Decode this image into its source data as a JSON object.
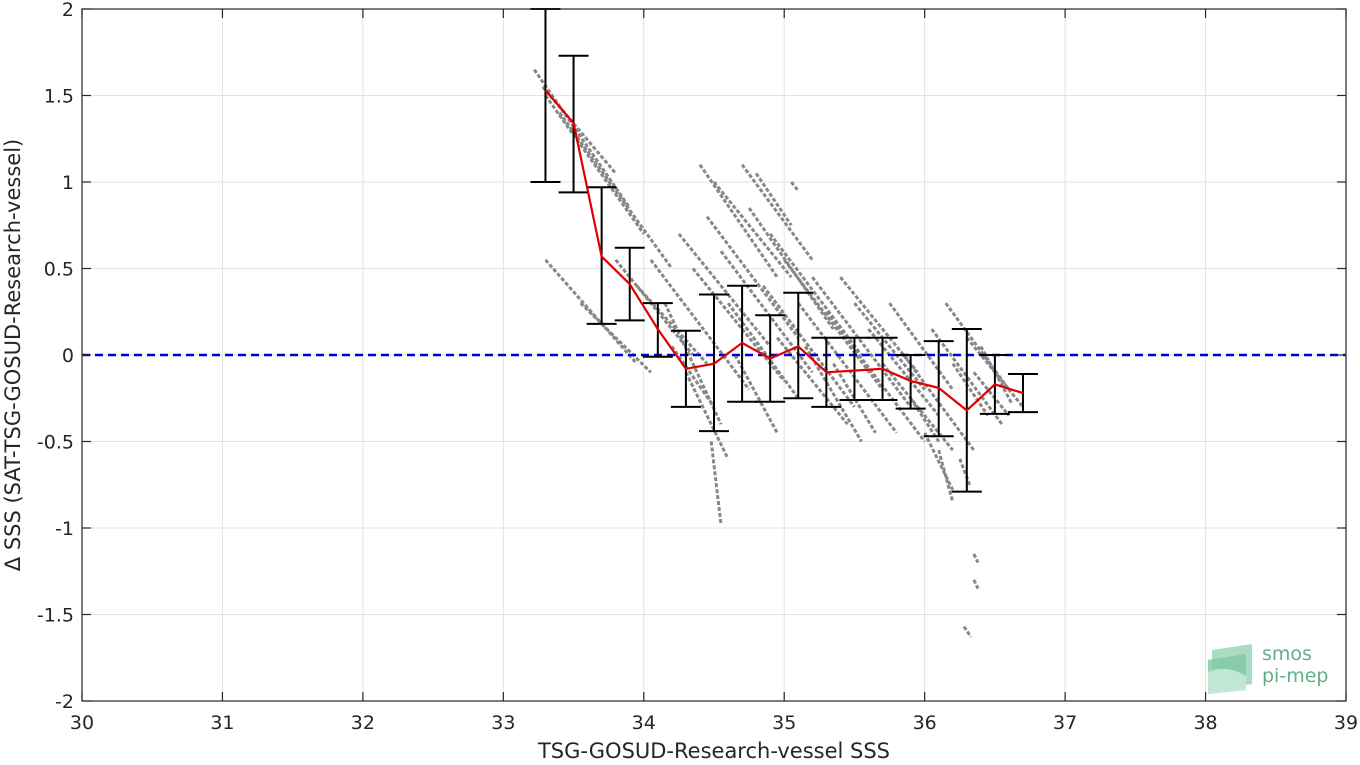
{
  "chart_data": {
    "type": "scatter",
    "xlabel": "TSG-GOSUD-Research-vessel SSS",
    "ylabel": "Δ SSS (SAT-TSG-GOSUD-Research-vessel)",
    "xlim": [
      30,
      39
    ],
    "ylim": [
      -2,
      2
    ],
    "xticks": [
      "30",
      "31",
      "32",
      "33",
      "34",
      "35",
      "36",
      "37",
      "38",
      "39"
    ],
    "yticks": [
      "2",
      "1.5",
      "1",
      "0.5",
      "0",
      "-0.5",
      "-1",
      "-1.5",
      "-2"
    ],
    "grid": true,
    "reference_line": {
      "y": 0,
      "color": "#0000cc",
      "style": "dashed"
    },
    "scatter_color": "#888888",
    "mean_color": "#e00000",
    "errorbar_color": "#000000",
    "binned_mean": [
      {
        "x": 33.3,
        "y": 1.53,
        "lower": 1.0,
        "upper": 2.0
      },
      {
        "x": 33.5,
        "y": 1.34,
        "lower": 0.94,
        "upper": 1.73
      },
      {
        "x": 33.7,
        "y": 0.57,
        "lower": 0.18,
        "upper": 0.97
      },
      {
        "x": 33.9,
        "y": 0.41,
        "lower": 0.2,
        "upper": 0.62
      },
      {
        "x": 34.1,
        "y": 0.15,
        "lower": -0.01,
        "upper": 0.3
      },
      {
        "x": 34.3,
        "y": -0.08,
        "lower": -0.3,
        "upper": 0.14
      },
      {
        "x": 34.5,
        "y": -0.05,
        "lower": -0.44,
        "upper": 0.35
      },
      {
        "x": 34.7,
        "y": 0.07,
        "lower": -0.27,
        "upper": 0.4
      },
      {
        "x": 34.9,
        "y": -0.02,
        "lower": -0.27,
        "upper": 0.23
      },
      {
        "x": 35.1,
        "y": 0.05,
        "lower": -0.25,
        "upper": 0.36
      },
      {
        "x": 35.3,
        "y": -0.1,
        "lower": -0.3,
        "upper": 0.1
      },
      {
        "x": 35.5,
        "y": -0.09,
        "lower": -0.26,
        "upper": 0.1
      },
      {
        "x": 35.7,
        "y": -0.08,
        "lower": -0.26,
        "upper": 0.1
      },
      {
        "x": 35.9,
        "y": -0.15,
        "lower": -0.31,
        "upper": 0.0
      },
      {
        "x": 36.1,
        "y": -0.19,
        "lower": -0.47,
        "upper": 0.08
      },
      {
        "x": 36.3,
        "y": -0.32,
        "lower": -0.79,
        "upper": 0.15
      },
      {
        "x": 36.5,
        "y": -0.17,
        "lower": -0.34,
        "upper": 0.0
      },
      {
        "x": 36.7,
        "y": -0.22,
        "lower": -0.33,
        "upper": -0.11
      }
    ],
    "scatter_streaks": [
      {
        "x1": 33.22,
        "y1": 1.65,
        "x2": 33.9,
        "y2": 0.85
      },
      {
        "x1": 33.28,
        "y1": 1.55,
        "x2": 33.8,
        "y2": 1.05
      },
      {
        "x1": 33.3,
        "y1": 1.5,
        "x2": 34.0,
        "y2": 0.7
      },
      {
        "x1": 33.4,
        "y1": 1.4,
        "x2": 34.2,
        "y2": 0.5
      },
      {
        "x1": 33.3,
        "y1": 0.55,
        "x2": 33.95,
        "y2": -0.05
      },
      {
        "x1": 33.55,
        "y1": 0.3,
        "x2": 34.05,
        "y2": -0.1
      },
      {
        "x1": 33.8,
        "y1": 0.55,
        "x2": 34.35,
        "y2": 0.0
      },
      {
        "x1": 33.95,
        "y1": 0.4,
        "x2": 34.45,
        "y2": -0.05
      },
      {
        "x1": 34.05,
        "y1": 0.55,
        "x2": 34.75,
        "y2": -0.2
      },
      {
        "x1": 34.15,
        "y1": 0.3,
        "x2": 34.55,
        "y2": -0.4
      },
      {
        "x1": 34.2,
        "y1": 0.05,
        "x2": 34.5,
        "y2": -0.3
      },
      {
        "x1": 34.25,
        "y1": 0.7,
        "x2": 34.9,
        "y2": 0.05
      },
      {
        "x1": 34.3,
        "y1": -0.1,
        "x2": 34.6,
        "y2": -0.6
      },
      {
        "x1": 34.35,
        "y1": 0.5,
        "x2": 35.0,
        "y2": -0.15
      },
      {
        "x1": 34.4,
        "y1": 1.1,
        "x2": 34.95,
        "y2": 0.45
      },
      {
        "x1": 34.45,
        "y1": 0.8,
        "x2": 35.1,
        "y2": 0.1
      },
      {
        "x1": 34.48,
        "y1": -0.5,
        "x2": 34.55,
        "y2": -0.98
      },
      {
        "x1": 34.5,
        "y1": 1.0,
        "x2": 35.05,
        "y2": 0.45
      },
      {
        "x1": 34.55,
        "y1": 0.6,
        "x2": 35.2,
        "y2": -0.1
      },
      {
        "x1": 34.6,
        "y1": 0.3,
        "x2": 35.1,
        "y2": -0.25
      },
      {
        "x1": 34.65,
        "y1": 0.0,
        "x2": 34.95,
        "y2": -0.45
      },
      {
        "x1": 34.7,
        "y1": 1.1,
        "x2": 35.2,
        "y2": 0.55
      },
      {
        "x1": 34.75,
        "y1": 0.85,
        "x2": 35.35,
        "y2": 0.15
      },
      {
        "x1": 34.8,
        "y1": 1.05,
        "x2": 35.05,
        "y2": 0.75
      },
      {
        "x1": 34.85,
        "y1": 0.4,
        "x2": 35.5,
        "y2": -0.3
      },
      {
        "x1": 34.9,
        "y1": 0.7,
        "x2": 35.55,
        "y2": 0.0
      },
      {
        "x1": 34.95,
        "y1": 0.1,
        "x2": 35.45,
        "y2": -0.4
      },
      {
        "x1": 35.0,
        "y1": 0.55,
        "x2": 35.7,
        "y2": -0.2
      },
      {
        "x1": 35.05,
        "y1": 1.0,
        "x2": 35.1,
        "y2": 0.95
      },
      {
        "x1": 35.1,
        "y1": 0.3,
        "x2": 35.8,
        "y2": -0.45
      },
      {
        "x1": 35.15,
        "y1": 0.05,
        "x2": 35.55,
        "y2": -0.5
      },
      {
        "x1": 35.2,
        "y1": 0.45,
        "x2": 35.9,
        "y2": -0.3
      },
      {
        "x1": 35.3,
        "y1": 0.25,
        "x2": 36.0,
        "y2": -0.5
      },
      {
        "x1": 35.35,
        "y1": -0.05,
        "x2": 35.65,
        "y2": -0.45
      },
      {
        "x1": 35.4,
        "y1": 0.45,
        "x2": 35.95,
        "y2": -0.1
      },
      {
        "x1": 35.5,
        "y1": 0.3,
        "x2": 36.0,
        "y2": -0.2
      },
      {
        "x1": 35.6,
        "y1": 0.15,
        "x2": 36.1,
        "y2": -0.35
      },
      {
        "x1": 35.7,
        "y1": -0.05,
        "x2": 36.2,
        "y2": -0.55
      },
      {
        "x1": 35.75,
        "y1": 0.3,
        "x2": 36.2,
        "y2": -0.2
      },
      {
        "x1": 35.85,
        "y1": 0.0,
        "x2": 36.35,
        "y2": -0.55
      },
      {
        "x1": 35.9,
        "y1": -0.25,
        "x2": 36.1,
        "y2": -0.5
      },
      {
        "x1": 36.0,
        "y1": -0.45,
        "x2": 36.2,
        "y2": -0.78
      },
      {
        "x1": 36.05,
        "y1": 0.15,
        "x2": 36.55,
        "y2": -0.4
      },
      {
        "x1": 36.1,
        "y1": -0.55,
        "x2": 36.2,
        "y2": -0.85
      },
      {
        "x1": 36.15,
        "y1": 0.3,
        "x2": 36.6,
        "y2": -0.2
      },
      {
        "x1": 36.2,
        "y1": -0.05,
        "x2": 36.45,
        "y2": -0.35
      },
      {
        "x1": 36.25,
        "y1": -0.6,
        "x2": 36.32,
        "y2": -0.75
      },
      {
        "x1": 36.3,
        "y1": 0.1,
        "x2": 36.7,
        "y2": -0.3
      },
      {
        "x1": 36.35,
        "y1": -0.1,
        "x2": 36.6,
        "y2": -0.35
      },
      {
        "x1": 36.4,
        "y1": 0.05,
        "x2": 36.62,
        "y2": -0.28
      },
      {
        "x1": 36.28,
        "y1": -1.57,
        "x2": 36.33,
        "y2": -1.63
      },
      {
        "x1": 36.35,
        "y1": -1.15,
        "x2": 36.38,
        "y2": -1.2
      },
      {
        "x1": 36.35,
        "y1": -1.3,
        "x2": 36.38,
        "y2": -1.35
      }
    ]
  },
  "logo": {
    "line1": "smos",
    "line2": "pi-mep"
  }
}
